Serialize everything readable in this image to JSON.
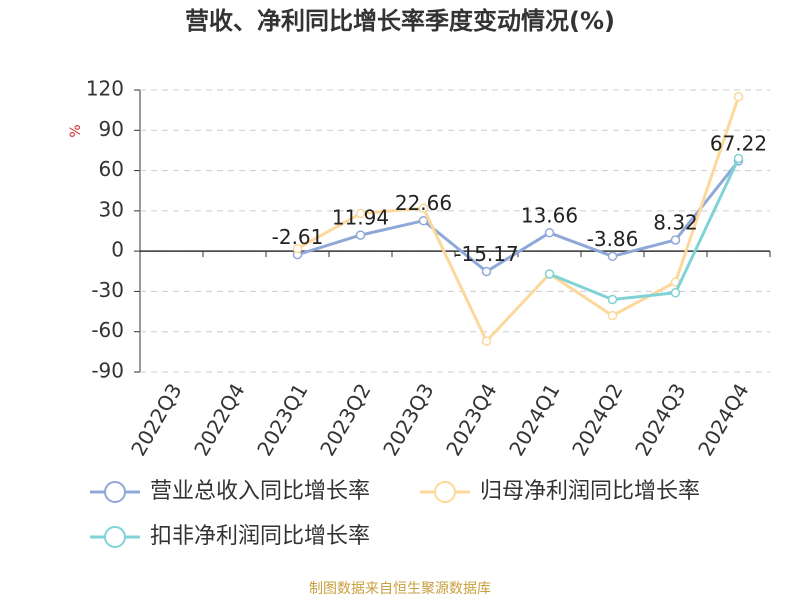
{
  "chart_data": {
    "type": "line",
    "title": "营收、净利同比增长率季度变动情况(%)",
    "y_label": "%",
    "source": "制图数据来自恒生聚源数据库",
    "categories": [
      "2022Q3",
      "2022Q4",
      "2023Q1",
      "2023Q2",
      "2023Q3",
      "2023Q4",
      "2024Q1",
      "2024Q2",
      "2024Q3",
      "2024Q4"
    ],
    "series": [
      {
        "name": "营业总收入同比增长率",
        "color": "#8fa8d8",
        "values": [
          null,
          null,
          -2.61,
          11.94,
          22.66,
          -15.17,
          13.66,
          -3.86,
          8.32,
          67.22
        ],
        "data_labels": true
      },
      {
        "name": "归母净利润同比增长率",
        "color": "#fcd89a",
        "values": [
          null,
          null,
          2,
          28,
          32,
          -67,
          -17,
          -48,
          -23,
          115
        ],
        "data_labels": false
      },
      {
        "name": "扣非净利润同比增长率",
        "color": "#7fd3d6",
        "values": [
          null,
          null,
          null,
          null,
          null,
          null,
          -17,
          -36,
          -31,
          69
        ],
        "data_labels": false
      }
    ],
    "ylim": [
      -90,
      120
    ],
    "yticks": [
      -90,
      -60,
      -30,
      0,
      30,
      60,
      90,
      120
    ],
    "grid": true
  }
}
